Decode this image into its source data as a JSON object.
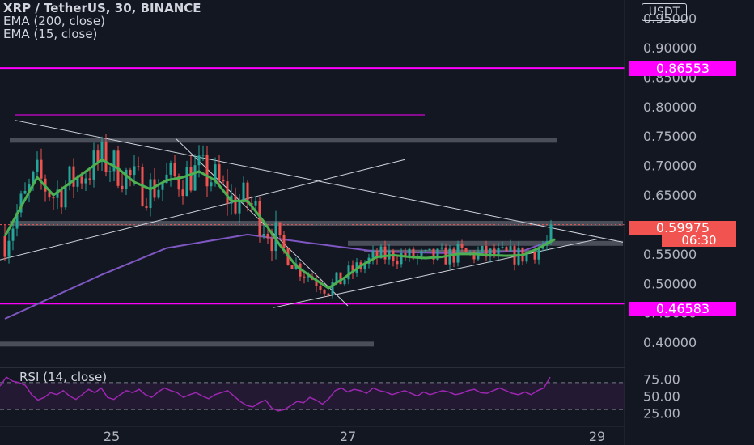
{
  "legend": {
    "title": "XRP / TetherUS, 30, BINANCE",
    "ema200": "EMA (200, close)",
    "ema15": "EMA (15, close)",
    "rsi": "RSI (14, close)"
  },
  "currency": "USDT",
  "price_tags": {
    "resistance": "0.86553",
    "support": "0.46583",
    "last_price": "0.59975",
    "countdown": "06:30"
  },
  "colors": {
    "background": "#131722",
    "up": "#26a69a",
    "down": "#ef5350",
    "ema200": "#7e57c2",
    "ema15": "#4caf50",
    "magenta_line": "#ff00ff",
    "rsi": "#9c27b0",
    "zone": "#787b86"
  },
  "chart_data": [
    {
      "type": "candlestick",
      "title": "XRP / TetherUS, 30, BINANCE",
      "x_ticks": [
        "25",
        "27",
        "29"
      ],
      "y_ticks": [
        "0.95000",
        "0.90000",
        "0.85000",
        "0.80000",
        "0.75000",
        "0.70000",
        "0.65000",
        "0.55000",
        "0.50000",
        "0.45000",
        "0.40000"
      ],
      "ylim": [
        0.37,
        0.97
      ],
      "horizontal_levels": [
        0.86553,
        0.46583
      ],
      "last_price": 0.59975,
      "series": [
        {
          "name": "EMA (200, close)",
          "points": [
            [
              0,
              0.44
            ],
            [
              40,
              0.465
            ],
            [
              120,
              0.515
            ],
            [
              200,
              0.56
            ],
            [
              300,
              0.583
            ],
            [
              380,
              0.568
            ],
            [
              460,
              0.554
            ],
            [
              560,
              0.551
            ],
            [
              640,
              0.555
            ],
            [
              680,
              0.575
            ]
          ]
        },
        {
          "name": "EMA (15, close)",
          "points": [
            [
              0,
              0.58
            ],
            [
              20,
              0.63
            ],
            [
              40,
              0.68
            ],
            [
              60,
              0.65
            ],
            [
              80,
              0.67
            ],
            [
              100,
              0.69
            ],
            [
              120,
              0.71
            ],
            [
              140,
              0.695
            ],
            [
              160,
              0.672
            ],
            [
              180,
              0.66
            ],
            [
              200,
              0.675
            ],
            [
              220,
              0.68
            ],
            [
              240,
              0.69
            ],
            [
              260,
              0.675
            ],
            [
              280,
              0.64
            ],
            [
              300,
              0.64
            ],
            [
              320,
              0.605
            ],
            [
              340,
              0.565
            ],
            [
              360,
              0.53
            ],
            [
              380,
              0.51
            ],
            [
              400,
              0.492
            ],
            [
              420,
              0.51
            ],
            [
              440,
              0.53
            ],
            [
              460,
              0.545
            ],
            [
              480,
              0.548
            ],
            [
              500,
              0.545
            ],
            [
              520,
              0.543
            ],
            [
              540,
              0.545
            ],
            [
              560,
              0.55
            ],
            [
              580,
              0.55
            ],
            [
              600,
              0.548
            ],
            [
              620,
              0.547
            ],
            [
              640,
              0.548
            ],
            [
              660,
              0.56
            ],
            [
              680,
              0.575
            ]
          ]
        }
      ]
    },
    {
      "type": "line",
      "title": "RSI (14, close)",
      "y_ticks": [
        "75.00",
        "50.00",
        "25.00"
      ],
      "ylim": [
        17,
        83
      ],
      "bands": [
        30,
        70
      ],
      "series": [
        {
          "name": "RSI (14, close)",
          "values": [
            65,
            78,
            72,
            70,
            66,
            52,
            44,
            48,
            55,
            52,
            58,
            50,
            45,
            52,
            60,
            55,
            62,
            48,
            45,
            52,
            58,
            55,
            60,
            52,
            48,
            56,
            62,
            58,
            55,
            48,
            52,
            55,
            50,
            46,
            52,
            55,
            58,
            50,
            42,
            36,
            34,
            40,
            44,
            32,
            28,
            30,
            36,
            42,
            40,
            48,
            44,
            38,
            46,
            58,
            62,
            56,
            60,
            58,
            54,
            62,
            58,
            56,
            52,
            55,
            58,
            54,
            50,
            56,
            52,
            55,
            58,
            56,
            52,
            54,
            58,
            60,
            55,
            54,
            58,
            62,
            58,
            54,
            52,
            56,
            52,
            58,
            62,
            78
          ]
        }
      ]
    }
  ]
}
